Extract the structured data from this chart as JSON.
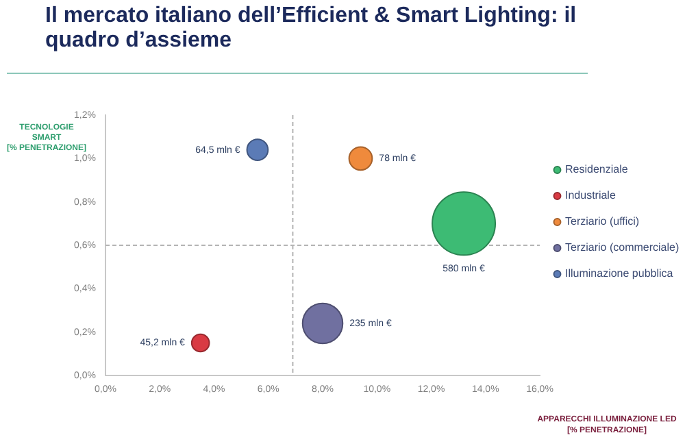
{
  "chart_data": {
    "type": "bubble",
    "title": "Il mercato italiano dell’Efficient & Smart Lighting: il quadro d’assieme",
    "xlabel": "APPARECCHI ILLUMINAZIONE LED [% PENETRAZIONE]",
    "ylabel": "TECNOLOGIE SMART [% PENETRAZIONE]",
    "xlim": [
      0,
      16
    ],
    "xticks": [
      {
        "value": 0,
        "label": "0,0%"
      },
      {
        "value": 2,
        "label": "2,0%"
      },
      {
        "value": 4,
        "label": "4,0%"
      },
      {
        "value": 6,
        "label": "6,0%"
      },
      {
        "value": 8,
        "label": "8,0%"
      },
      {
        "value": 10,
        "label": "10,0%"
      },
      {
        "value": 12,
        "label": "12,0%"
      },
      {
        "value": 14,
        "label": "14,0%"
      },
      {
        "value": 16,
        "label": "16,0%"
      }
    ],
    "ylim": [
      0,
      1.2
    ],
    "yticks": [
      {
        "value": 0,
        "label": "0,0%"
      },
      {
        "value": 0.2,
        "label": "0,2%"
      },
      {
        "value": 0.4,
        "label": "0,4%"
      },
      {
        "value": 0.6,
        "label": "0,6%"
      },
      {
        "value": 0.8,
        "label": "0,8%"
      },
      {
        "value": 1.0,
        "label": "1,0%"
      },
      {
        "value": 1.2,
        "label": "1,2%"
      }
    ],
    "series": [
      {
        "name": "Residenziale",
        "color": "#3dbb74",
        "x": [
          13.2
        ],
        "values": [
          0.7
        ],
        "sizes": [
          580
        ],
        "value_labels": [
          "580 mln €"
        ]
      },
      {
        "name": "Industriale",
        "color": "#d93a43",
        "x": [
          3.5
        ],
        "values": [
          0.15
        ],
        "sizes": [
          45.2
        ],
        "value_labels": [
          "45,2 mln €"
        ]
      },
      {
        "name": "Terziario (uffici)",
        "color": "#ef8a3c",
        "x": [
          9.4
        ],
        "values": [
          1.0
        ],
        "sizes": [
          78
        ],
        "value_labels": [
          "78 mln €"
        ]
      },
      {
        "name": "Terziario (commerciale)",
        "color": "#7070a0",
        "x": [
          8.0
        ],
        "values": [
          0.24
        ],
        "sizes": [
          235
        ],
        "value_labels": [
          "235 mln €"
        ]
      },
      {
        "name": "Illuminazione pubblica",
        "color": "#5b7bb6",
        "x": [
          5.6
        ],
        "values": [
          1.04
        ],
        "sizes": [
          64.5
        ],
        "value_labels": [
          "64,5 mln €"
        ]
      }
    ],
    "ref_lines": [
      {
        "axis": "x",
        "value": 6.9,
        "color": "#b4b4b4",
        "line_style": "dashed"
      },
      {
        "axis": "y",
        "value": 0.6,
        "color": "#b4b4b4",
        "line_style": "dashed"
      }
    ],
    "legend": "right",
    "marker": "circle"
  }
}
